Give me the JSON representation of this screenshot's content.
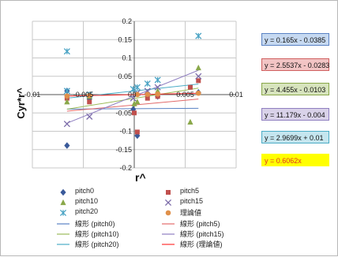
{
  "chart_data": {
    "type": "scatter",
    "xlabel": "r^",
    "ylabel": "Cyr*r^",
    "xlim": [
      -0.01,
      0.01
    ],
    "ylim": [
      -0.2,
      0.2
    ],
    "x_ticks": [
      "-0.01",
      "-0.005",
      "0",
      "0.005",
      "0.01"
    ],
    "y_ticks": [
      "0.2",
      "0.15",
      "0.1",
      "0.05",
      "0",
      "-0.05",
      "-0.1",
      "-0.15",
      "-0.2"
    ],
    "grid": true,
    "series": [
      {
        "name": "pitch0",
        "color": "#3a5a9a",
        "marker": "diamond",
        "x": [
          -0.0066,
          -0.0066,
          -0.0044,
          -0.0001,
          0.0003,
          0.0013,
          0.0023,
          0.0063
        ],
        "y": [
          -0.139,
          0.01,
          -0.012,
          -0.04,
          -0.112,
          0.0,
          -0.005,
          0.006
        ],
        "trend": {
          "slope": 0.165,
          "intercept": -0.0385,
          "label": "y = 0.165x - 0.0385",
          "color": "#5a82c4"
        }
      },
      {
        "name": "pitch5",
        "color": "#c0504d",
        "marker": "square",
        "x": [
          -0.0066,
          -0.0044,
          0.0,
          0.0003,
          0.0013,
          0.0023,
          0.0055,
          0.0063
        ],
        "y": [
          -0.01,
          -0.02,
          -0.05,
          -0.102,
          -0.01,
          -0.005,
          0.02,
          0.038
        ],
        "trend": {
          "slope": 2.5537,
          "intercept": -0.0283,
          "label": "y = 2.5537x - 0.0283",
          "color": "#e26a6a"
        }
      },
      {
        "name": "pitch10",
        "color": "#8aa84a",
        "marker": "triangle",
        "x": [
          -0.0066,
          -0.0044,
          0.0,
          0.0003,
          0.0013,
          0.0023,
          0.0055,
          0.0063
        ],
        "y": [
          -0.02,
          -0.005,
          -0.025,
          -0.02,
          0.005,
          0.01,
          -0.075,
          0.073
        ],
        "trend": {
          "slope": 4.455,
          "intercept": -0.0103,
          "label": "y = 4.455x - 0.0103",
          "color": "#9bbb59"
        }
      },
      {
        "name": "pitch15",
        "color": "#7a6aa8",
        "marker": "x",
        "x": [
          -0.0066,
          -0.0044,
          -0.0001,
          0.0003,
          0.0013,
          0.0023,
          0.0063
        ],
        "y": [
          -0.08,
          -0.06,
          -0.01,
          0.005,
          0.01,
          0.02,
          0.05
        ],
        "trend": {
          "slope": 11.179,
          "intercept": -0.004,
          "label": "y = 11.179x - 0.004",
          "color": "#8f7fc0"
        }
      },
      {
        "name": "pitch20",
        "color": "#4aa3c4",
        "marker": "star",
        "x": [
          -0.0066,
          -0.0066,
          -0.0044,
          -0.0001,
          0.0003,
          0.0013,
          0.0023,
          0.0063
        ],
        "y": [
          0.118,
          0.01,
          0.0,
          0.015,
          0.02,
          0.03,
          0.04,
          0.16
        ],
        "trend": {
          "slope": 2.9699,
          "intercept": 0.01,
          "label": "y = 2.9699x + 0.01",
          "color": "#4bacc6"
        }
      },
      {
        "name": "理論値",
        "color": "#e0904a",
        "marker": "circle",
        "x": [
          -0.0066,
          -0.0044,
          0.0003,
          0.0013,
          0.0023,
          0.0063
        ],
        "y": [
          -0.004,
          -0.0027,
          0.0002,
          0.0008,
          0.0014,
          0.0038
        ],
        "trend": {
          "slope": 0.6062,
          "intercept": 0,
          "label": "y = 0.6062x",
          "color": "#ff3030"
        }
      }
    ],
    "legend": [
      {
        "label": "pitch0",
        "marker": "diamond",
        "color": "#3a5a9a"
      },
      {
        "label": "pitch5",
        "marker": "square",
        "color": "#c0504d"
      },
      {
        "label": "pitch10",
        "marker": "triangle",
        "color": "#8aa84a"
      },
      {
        "label": "pitch15",
        "marker": "x",
        "color": "#7a6aa8"
      },
      {
        "label": "pitch20",
        "marker": "star",
        "color": "#4aa3c4"
      },
      {
        "label": "理論値",
        "marker": "circle",
        "color": "#e0904a"
      },
      {
        "label": "線形 (pitch0)",
        "marker": "line",
        "color": "#5a82c4"
      },
      {
        "label": "線形 (pitch5)",
        "marker": "line",
        "color": "#e26a6a"
      },
      {
        "label": "線形 (pitch10)",
        "marker": "line",
        "color": "#9bbb59"
      },
      {
        "label": "線形 (pitch15)",
        "marker": "line",
        "color": "#8f7fc0"
      },
      {
        "label": "線形 (pitch20)",
        "marker": "line",
        "color": "#4bacc6"
      },
      {
        "label": "線形 (理論値)",
        "marker": "line",
        "color": "#ff3030"
      }
    ],
    "equation_boxes": [
      {
        "text": "y = 0.165x - 0.0385",
        "bg": "#c6d9f1",
        "border": "#5a82c4"
      },
      {
        "text": "y = 2.5537x - 0.0283",
        "bg": "#f2c4c4",
        "border": "#d06060"
      },
      {
        "text": "y = 4.455x - 0.0103",
        "bg": "#d7e4bd",
        "border": "#8aa84a"
      },
      {
        "text": "y = 11.179x - 0.004",
        "bg": "#d9d2e9",
        "border": "#8f7fc0"
      },
      {
        "text": "y = 2.9699x + 0.01",
        "bg": "#c5e6ef",
        "border": "#4bacc6"
      },
      {
        "text": "y = 0.6062x",
        "bg": "#ffff00",
        "border": "#ffff00",
        "color": "#e03020"
      }
    ]
  }
}
